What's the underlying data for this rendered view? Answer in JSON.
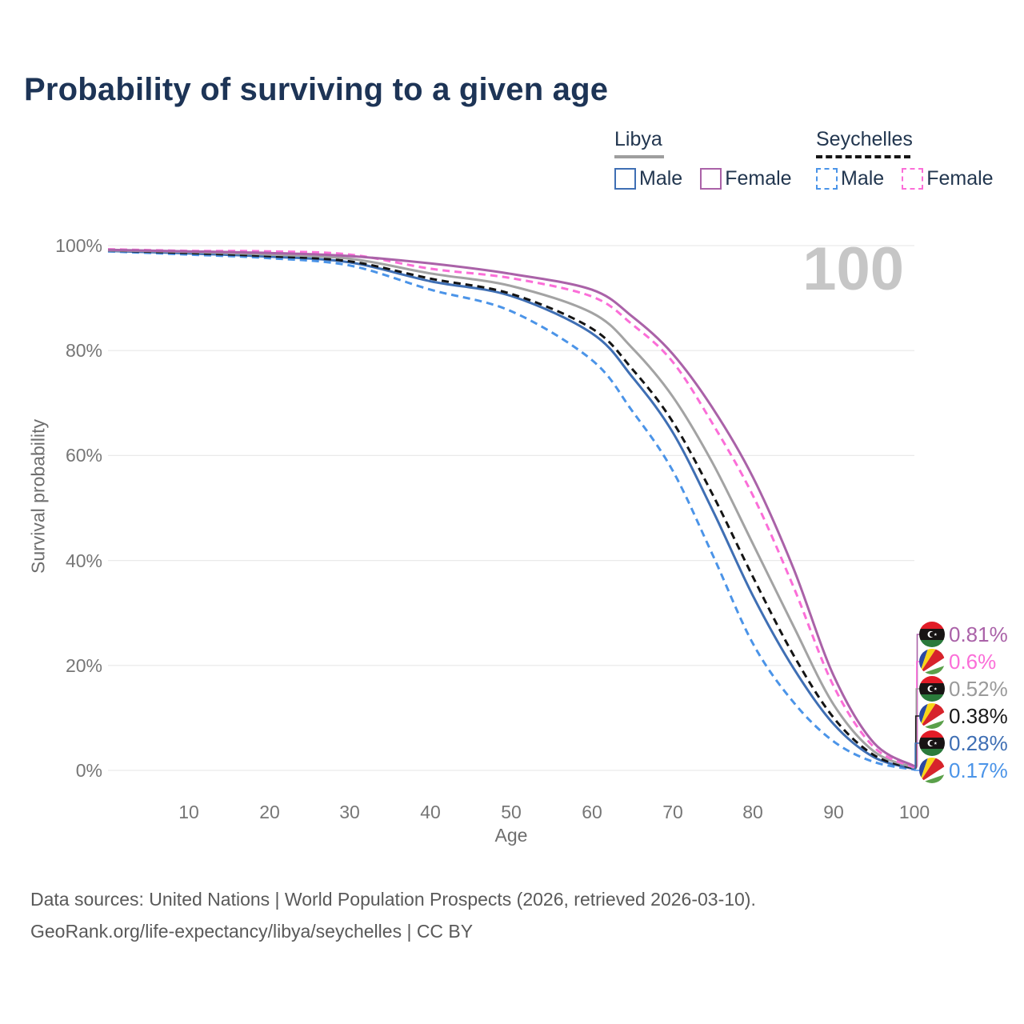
{
  "page": {
    "title": "Probability of surviving to a given age"
  },
  "legend": {
    "groups": [
      {
        "country": "Libya",
        "line_style": "solid",
        "underline_color": "#9e9e9e",
        "items": [
          {
            "label": "Male",
            "color": "#3f6fb4"
          },
          {
            "label": "Female",
            "color": "#aa62a8"
          }
        ]
      },
      {
        "country": "Seychelles",
        "line_style": "dashed",
        "underline_color": "#161616",
        "items": [
          {
            "label": "Male",
            "color": "#4b94e8"
          },
          {
            "label": "Female",
            "color": "#fb6ed8"
          }
        ]
      }
    ]
  },
  "chart_data": {
    "type": "line",
    "title": "Probability of surviving to a given age",
    "xlabel": "Age",
    "ylabel": "Survival probability",
    "xlim": [
      0,
      100
    ],
    "ylim": [
      0,
      100
    ],
    "grid": "horizontal-only",
    "legend_position": "top-right",
    "watermark": "100",
    "x_tick_labels": [
      "10",
      "20",
      "30",
      "40",
      "50",
      "60",
      "70",
      "80",
      "90",
      "100"
    ],
    "y_tick_labels": [
      "100%",
      "80%",
      "60%",
      "40%",
      "20%",
      "0%"
    ],
    "y_tick_values": [
      0,
      20,
      40,
      60,
      80,
      100
    ],
    "x": [
      0,
      10,
      20,
      30,
      40,
      50,
      60,
      65,
      70,
      75,
      80,
      85,
      90,
      95,
      100
    ],
    "series": [
      {
        "name": "Seychelles Male",
        "country": "Seychelles",
        "sex": "Male",
        "style": "dashed",
        "color": "#4b94e8",
        "end_label": "0.17%",
        "values": [
          98.9,
          98.3,
          97.6,
          96.2,
          91.6,
          87.5,
          78.2,
          68.5,
          57.2,
          41.0,
          24.1,
          13.0,
          5.5,
          1.6,
          0.17
        ]
      },
      {
        "name": "Libya Male",
        "country": "Libya",
        "sex": "Male",
        "style": "solid",
        "color": "#3f6fb4",
        "end_label": "0.28%",
        "values": [
          99.0,
          98.5,
          97.9,
          96.8,
          93.2,
          90.4,
          83.3,
          75.0,
          64.5,
          49.5,
          33.2,
          19.5,
          8.8,
          2.5,
          0.28
        ]
      },
      {
        "name": "Seychelles Both",
        "country": "Seychelles",
        "sex": "Both",
        "style": "dashed",
        "color": "#141414",
        "end_label": "0.38%",
        "values": [
          99.1,
          98.6,
          98.0,
          97.0,
          93.7,
          90.8,
          84.2,
          76.5,
          66.5,
          52.5,
          36.8,
          22.0,
          10.0,
          2.9,
          0.38
        ]
      },
      {
        "name": "Libya Both",
        "country": "Libya",
        "sex": "Both",
        "style": "solid",
        "color": "#a3a3a3",
        "end_label": "0.52%",
        "values": [
          99.1,
          98.8,
          98.3,
          97.5,
          94.7,
          92.3,
          87.2,
          80.5,
          71.3,
          58.5,
          43.1,
          27.5,
          12.5,
          3.6,
          0.52
        ]
      },
      {
        "name": "Seychelles Female",
        "country": "Seychelles",
        "sex": "Female",
        "style": "dashed",
        "color": "#fb6ed8",
        "end_label": "0.6%",
        "values": [
          99.3,
          99.0,
          98.9,
          98.3,
          95.6,
          93.8,
          90.3,
          85.0,
          77.9,
          66.0,
          52.3,
          35.0,
          16.0,
          4.4,
          0.6
        ]
      },
      {
        "name": "Libya Female",
        "country": "Libya",
        "sex": "Female",
        "style": "solid",
        "color": "#aa62a8",
        "end_label": "0.81%",
        "values": [
          99.2,
          98.9,
          98.6,
          98.0,
          96.6,
          94.6,
          91.6,
          86.5,
          79.4,
          69.0,
          55.8,
          38.5,
          18.0,
          5.2,
          0.81
        ]
      }
    ]
  },
  "end_labels": [
    {
      "value": "0.81%",
      "flag": "libya",
      "color": "#aa62a8",
      "series_index": 5
    },
    {
      "value": "0.6%",
      "flag": "seychelles",
      "color": "#fb6ed8",
      "series_index": 4
    },
    {
      "value": "0.52%",
      "flag": "libya",
      "color": "#9a9a9a",
      "series_index": 3
    },
    {
      "value": "0.38%",
      "flag": "seychelles",
      "color": "#1a1a1a",
      "series_index": 2
    },
    {
      "value": "0.28%",
      "flag": "libya",
      "color": "#3f6fb4",
      "series_index": 1
    },
    {
      "value": "0.17%",
      "flag": "seychelles",
      "color": "#4b94e8",
      "series_index": 0
    }
  ],
  "footer": {
    "line1": "Data sources: United Nations | World Population Prospects (2026, retrieved 2026-03-10).",
    "line2": "GeoRank.org/life-expectancy/libya/seychelles | CC BY"
  }
}
